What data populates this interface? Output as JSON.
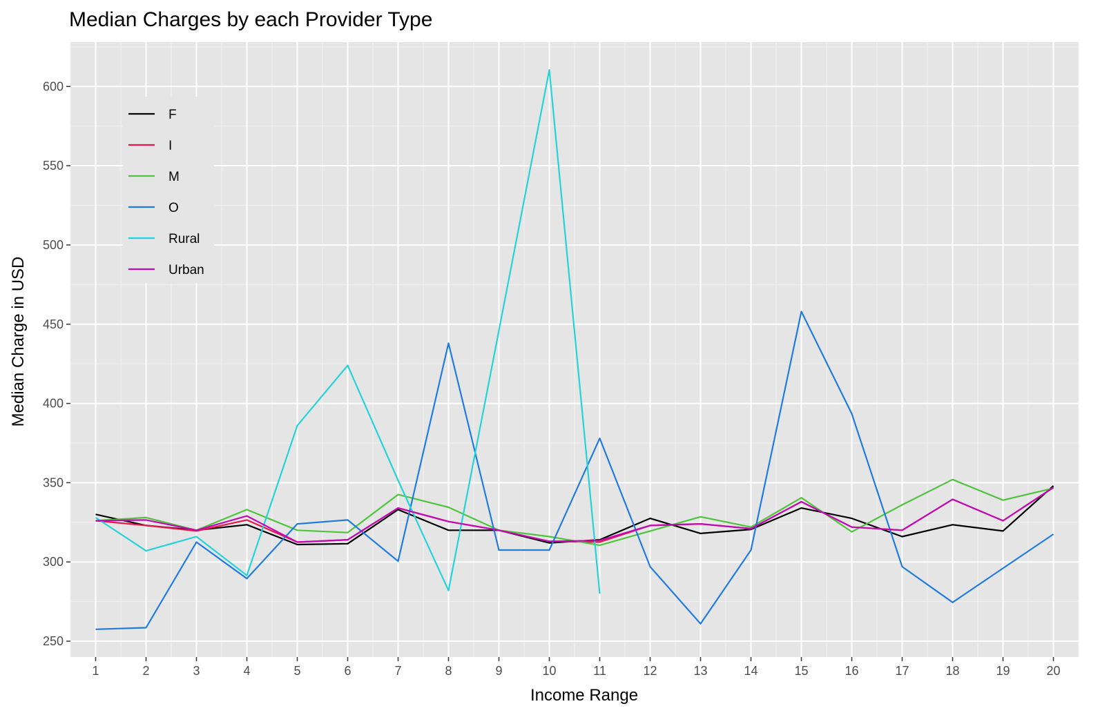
{
  "chart_data": {
    "type": "line",
    "title": "Median Charges by each Provider Type",
    "xlabel": "Income Range",
    "ylabel": "Median Charge in USD",
    "xlim": [
      0.5,
      20.5
    ],
    "ylim": [
      240,
      628
    ],
    "x": [
      1,
      2,
      3,
      4,
      5,
      6,
      7,
      8,
      9,
      10,
      11,
      12,
      13,
      14,
      15,
      16,
      17,
      18,
      19,
      20
    ],
    "yticks": [
      250,
      300,
      350,
      400,
      450,
      500,
      550,
      600
    ],
    "grid": true,
    "legend_position": "top-left",
    "series": [
      {
        "name": "F",
        "color": "#000000",
        "x": [
          1,
          2,
          3,
          4,
          5,
          6,
          7,
          8,
          9,
          10,
          11,
          12,
          13,
          14,
          15,
          16,
          17,
          18,
          19,
          20
        ],
        "values": [
          330,
          323,
          320,
          323.5,
          311,
          311.5,
          333,
          320,
          320,
          312,
          314,
          327.5,
          318,
          320.5,
          334,
          327.5,
          316,
          323.5,
          319.5,
          348
        ]
      },
      {
        "name": "I",
        "color": "#e41a4a",
        "x": [
          1,
          2,
          3,
          4,
          5,
          6,
          7,
          8,
          9,
          10,
          11,
          12,
          13,
          14,
          15,
          16,
          17,
          18,
          19,
          20
        ],
        "values": [
          326,
          323,
          319.5,
          326.5,
          312.5,
          314,
          334,
          325.5,
          320,
          313,
          312.5,
          323,
          324,
          321,
          338,
          322,
          320,
          339.5,
          326,
          347
        ]
      },
      {
        "name": "M",
        "color": "#4dc43b",
        "x": [
          1,
          2,
          3,
          4,
          5,
          6,
          7,
          8,
          9,
          10,
          11,
          12,
          13,
          14,
          15,
          16,
          17,
          18,
          19,
          20
        ],
        "values": [
          326,
          328,
          320,
          333,
          320,
          318.5,
          342.5,
          334.5,
          320,
          316,
          310.5,
          319.5,
          328.5,
          322,
          340.5,
          319,
          336,
          352,
          339,
          346.5
        ]
      },
      {
        "name": "O",
        "color": "#1f7be0",
        "x": [
          1,
          2,
          3,
          4,
          5,
          6,
          7,
          8,
          9,
          10,
          11,
          12,
          13,
          14,
          15,
          16,
          17,
          18,
          19,
          20
        ],
        "values": [
          257.5,
          258.5,
          312.5,
          289.5,
          324,
          326.5,
          300.5,
          438,
          307.5,
          307.5,
          378,
          297,
          261,
          307.5,
          458,
          393.5,
          297,
          274.5,
          296,
          317.5
        ]
      },
      {
        "name": "Rural",
        "color": "#24d3d9",
        "x": [
          1,
          2,
          3,
          4,
          5,
          6,
          7,
          8,
          9,
          10,
          11
        ],
        "values": [
          328,
          307,
          316,
          291.5,
          386,
          424,
          351.5,
          282,
          446,
          610.5,
          280
        ]
      },
      {
        "name": "Urban",
        "color": "#c20ab4",
        "x": [
          1,
          2,
          3,
          4,
          5,
          6,
          7,
          8,
          9,
          10,
          11,
          12,
          13,
          14,
          15,
          16,
          17,
          18,
          19,
          20
        ],
        "values": [
          326,
          326.5,
          320,
          329,
          312.5,
          314,
          334,
          325.5,
          320,
          313,
          313.5,
          323,
          324,
          321,
          338,
          322,
          320,
          339.5,
          326,
          347
        ]
      }
    ]
  }
}
